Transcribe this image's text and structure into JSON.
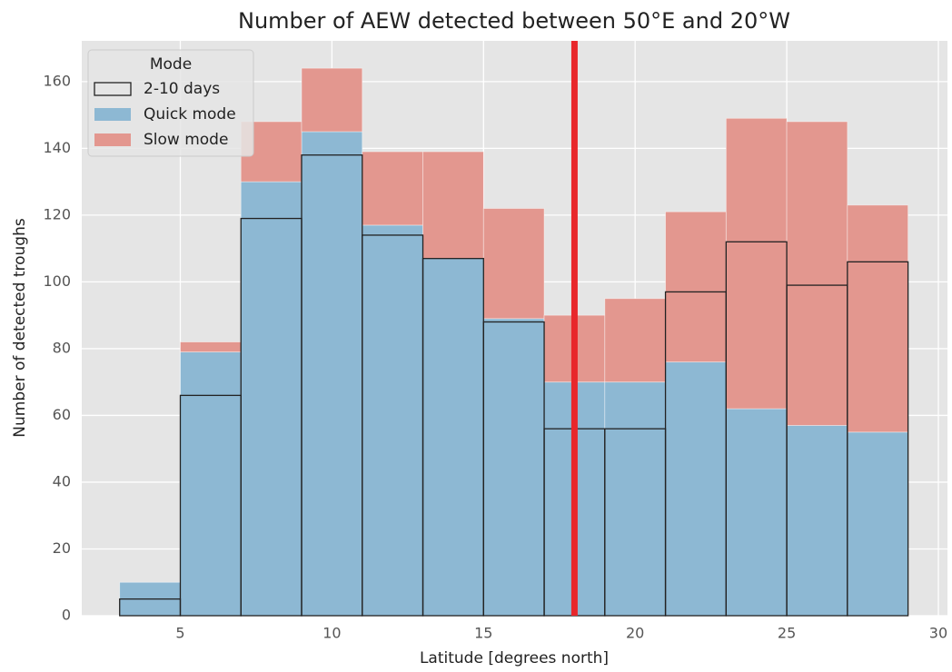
{
  "chart_data": {
    "type": "histogram",
    "title": "Number of AEW detected between 50°E and 20°W",
    "xlabel": "Latitude [degrees north]",
    "ylabel": "Number of detected troughs",
    "bins": [
      3,
      5,
      7,
      9,
      11,
      13,
      15,
      17,
      19,
      21,
      23,
      25,
      27,
      29
    ],
    "series": [
      {
        "name": "2-10 days",
        "color": "none",
        "edgecolor": "#222222",
        "values": [
          5,
          66,
          119,
          138,
          114,
          107,
          88,
          56,
          56,
          97,
          112,
          99,
          106
        ]
      },
      {
        "name": "Quick mode",
        "color": "#8db8d3",
        "values": [
          10,
          79,
          130,
          145,
          117,
          107,
          89,
          70,
          70,
          76,
          62,
          57,
          55
        ]
      },
      {
        "name": "Slow mode",
        "color": "#e3978f",
        "stack": "Quick mode",
        "values": [
          0,
          3,
          18,
          19,
          22,
          32,
          33,
          20,
          25,
          45,
          87,
          91,
          68
        ]
      }
    ],
    "draw_order": [
      "Quick mode",
      "Slow mode",
      "2-10 days"
    ],
    "legend_title": "Mode",
    "legend": "upper left",
    "vline": {
      "x": 18,
      "color": "#e8272b"
    },
    "xlim": [
      1.75,
      30.3
    ],
    "ylim": [
      0,
      172.2
    ],
    "xticks": [
      5,
      10,
      15,
      20,
      25,
      30
    ],
    "yticks": [
      0,
      20,
      40,
      60,
      80,
      100,
      120,
      140,
      160
    ],
    "grid": true
  }
}
